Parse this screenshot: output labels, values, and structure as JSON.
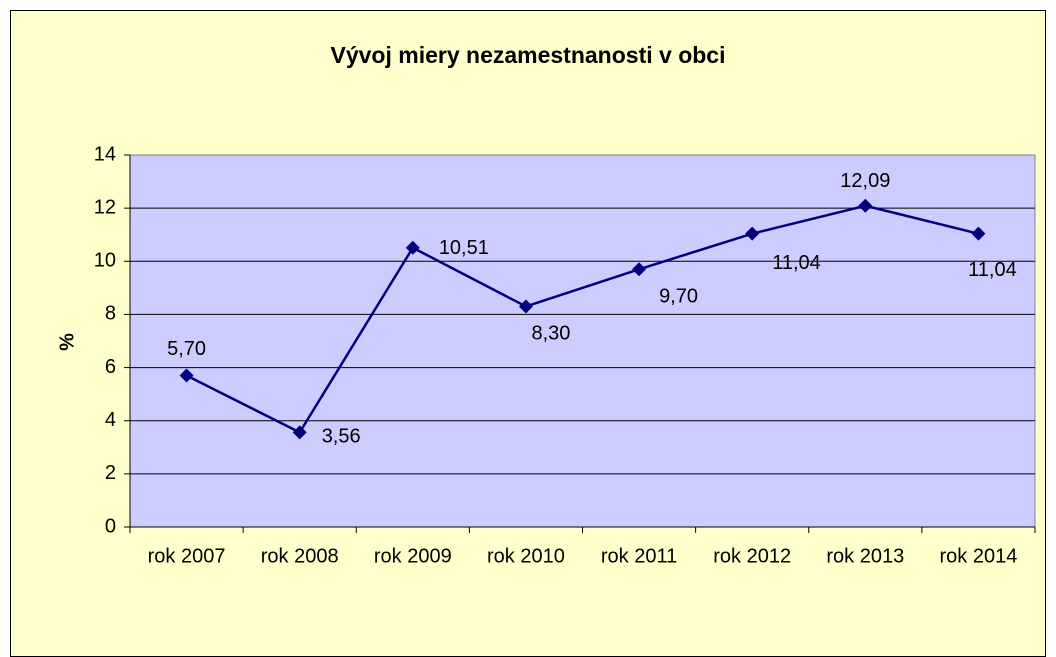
{
  "chart_data": {
    "type": "line",
    "title": "Vývoj miery nezamestnanosti v obci",
    "y_label": "%",
    "categories": [
      "rok 2007",
      "rok 2008",
      "rok 2009",
      "rok 2010",
      "rok 2011",
      "rok 2012",
      "rok 2013",
      "rok 2014"
    ],
    "values": [
      5.7,
      3.56,
      10.51,
      8.3,
      9.7,
      11.04,
      12.09,
      11.04
    ],
    "value_labels": [
      "5,70",
      "3,56",
      "10,51",
      "8,30",
      "9,70",
      "11,04",
      "12,09",
      "11,04"
    ],
    "color": "#000080",
    "ylim": [
      0,
      14
    ],
    "yticks": [
      0,
      2,
      4,
      6,
      8,
      10,
      12,
      14
    ],
    "grid": true
  }
}
